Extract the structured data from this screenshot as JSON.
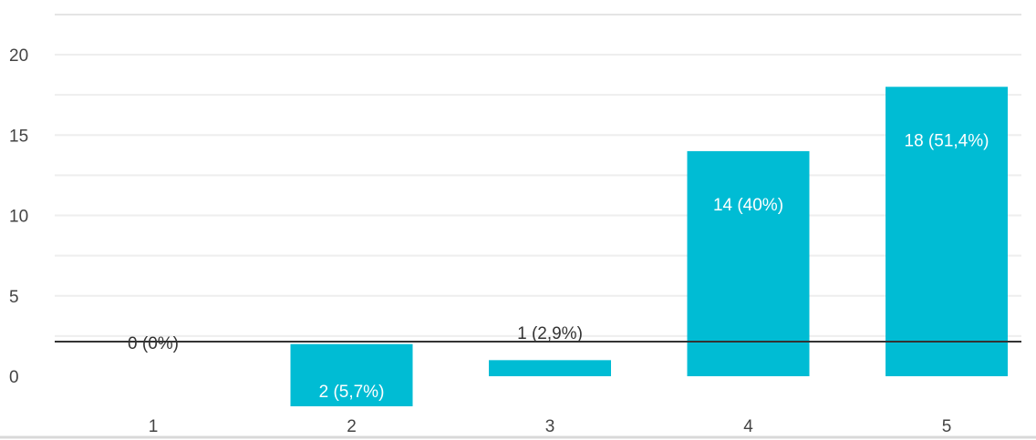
{
  "chart_data": {
    "type": "bar",
    "categories": [
      "1",
      "2",
      "3",
      "4",
      "5"
    ],
    "values": [
      0,
      2,
      1,
      14,
      18
    ],
    "data_labels": [
      "0 (0%)",
      "2 (5,7%)",
      "1 (2,9%)",
      "14 (40%)",
      "18 (51,4%)"
    ],
    "ylim": [
      0,
      20
    ],
    "yticks": [
      "0",
      "5",
      "10",
      "15",
      "20"
    ],
    "grid": true,
    "bar_color": "#00bcd4",
    "title": "",
    "xlabel": "",
    "ylabel": ""
  }
}
